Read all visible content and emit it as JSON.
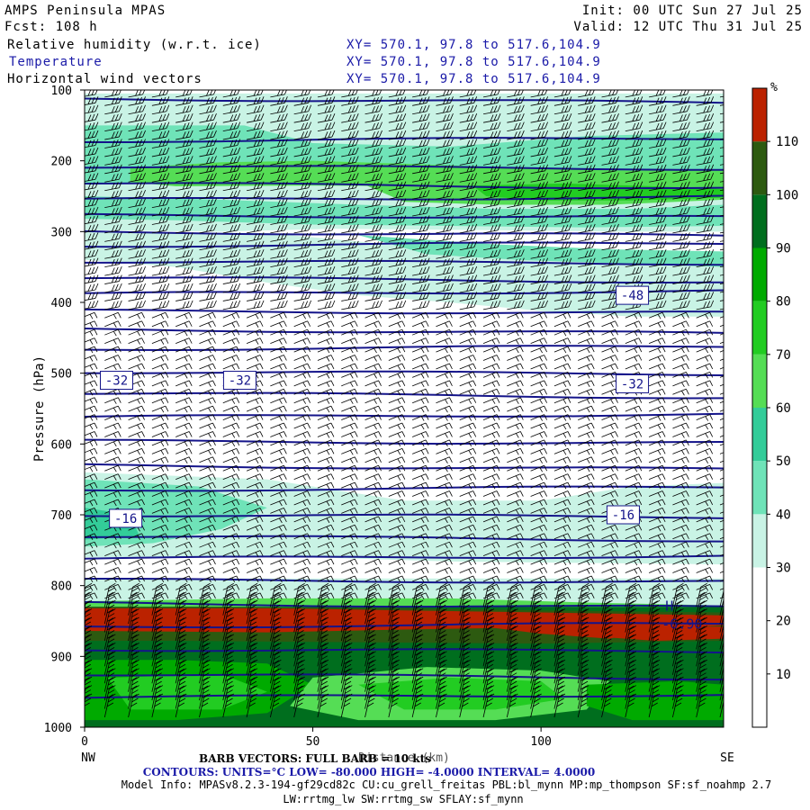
{
  "header": {
    "title": "AMPS Peninsula MPAS",
    "fcst": "Fcst: 108 h",
    "init": "Init: 00 UTC Sun 27 Jul 25",
    "valid": "Valid: 12 UTC Thu 31 Jul 25",
    "fields": [
      {
        "name": "Relative humidity (w.r.t. ice)",
        "xy": "XY= 570.1, 97.8 to 517.6,104.9"
      },
      {
        "name": "Temperature",
        "xy": "XY= 570.1, 97.8 to 517.6,104.9"
      },
      {
        "name": "Horizontal wind vectors",
        "xy": "XY= 570.1, 97.8 to 517.6,104.9"
      }
    ]
  },
  "chart_data": {
    "type": "heatmap",
    "subtype": "vertical cross-section (filled RH + temperature contours + wind barbs)",
    "ylabel": "Pressure (hPa)",
    "xlabel": "Distance (km)",
    "x_ticks": [
      "0",
      "50",
      "100"
    ],
    "x_range": [
      0,
      140
    ],
    "x_end_labels": {
      "left": "NW",
      "right": "SE"
    },
    "y_ticks": [
      "100",
      "200",
      "300",
      "400",
      "500",
      "600",
      "700",
      "800",
      "900",
      "1000"
    ],
    "y_range": [
      100,
      1000
    ],
    "y_inverted": true,
    "colorbar": {
      "unit": "%",
      "ticks": [
        "10",
        "20",
        "30",
        "40",
        "50",
        "60",
        "70",
        "80",
        "90",
        "100",
        "110"
      ],
      "colors": [
        "#ffffff",
        "#ffffff",
        "#ffffff",
        "#c9f3e5",
        "#6fe3b8",
        "#33cc99",
        "#55dd55",
        "#22cc22",
        "#00aa00",
        "#006e1e",
        "#2d5a10",
        "#bb2200"
      ]
    },
    "temperature_contours": {
      "units": "°C",
      "interval": 4,
      "low": -80,
      "high": -4,
      "labels": [
        {
          "text": "-48",
          "x": 120,
          "p": 390
        },
        {
          "text": "-32",
          "x": 7,
          "p": 510
        },
        {
          "text": "-32",
          "x": 34,
          "p": 510
        },
        {
          "text": "-32",
          "x": 120,
          "p": 515
        },
        {
          "text": "-16",
          "x": 9,
          "p": 705
        },
        {
          "text": "-16",
          "x": 118,
          "p": 700
        }
      ],
      "levels_p": [
        112,
        172,
        208,
        232,
        255,
        277,
        300,
        320,
        342,
        365,
        388,
        412,
        438,
        466,
        498,
        528,
        562,
        596,
        630,
        665,
        700,
        730,
        762,
        792,
        825,
        858,
        890,
        925,
        958
      ]
    },
    "high_marker": {
      "symbol": "H",
      "value": "-6.90",
      "x": 130,
      "p": 838
    },
    "rh_regions": [
      {
        "name": "upper moist band",
        "x": [
          0,
          140
        ],
        "p": [
          110,
          300
        ],
        "rh_max": 80
      },
      {
        "name": "moist band near 250 hPa",
        "x": [
          60,
          140
        ],
        "p": [
          230,
          270
        ],
        "rh_max": 85
      },
      {
        "name": "mid-level moisture",
        "x": [
          0,
          140
        ],
        "p": [
          300,
          420
        ],
        "rh_max": 50
      },
      {
        "name": "dry mid troposphere",
        "x": [
          0,
          140
        ],
        "p": [
          420,
          650
        ],
        "rh_max": 20
      },
      {
        "name": "moist layer near 700 hPa",
        "x": [
          0,
          140
        ],
        "p": [
          650,
          760
        ],
        "rh_max": 50
      },
      {
        "name": "saturated layer (ice)",
        "x": [
          0,
          140
        ],
        "p": [
          832,
          880
        ],
        "rh_max": 110
      },
      {
        "name": "boundary layer",
        "x": [
          0,
          140
        ],
        "p": [
          880,
          1000
        ],
        "rh_max": 100
      }
    ],
    "wind_barbs": {
      "note": "Barb vectors: full barb = 10 kts"
    }
  },
  "footer": {
    "barb": "BARB VECTORS: FULL BARB = 10 kts",
    "axis_title": "Distance (km)",
    "contours": "CONTOURS: UNITS=°C LOW= -80.000 HIGH= -4.0000 INTERVAL= 4.0000",
    "model_info": "Model Info: MPASv8.2.3-194-gf29cd82c CU:cu_grell_freitas PBL:bl_mynn MP:mp_thompson SF:sf_noahmp 2.7",
    "model_info2": "LW:rrtmg_lw SW:rrtmg_sw SFLAY:sf_mynn"
  }
}
